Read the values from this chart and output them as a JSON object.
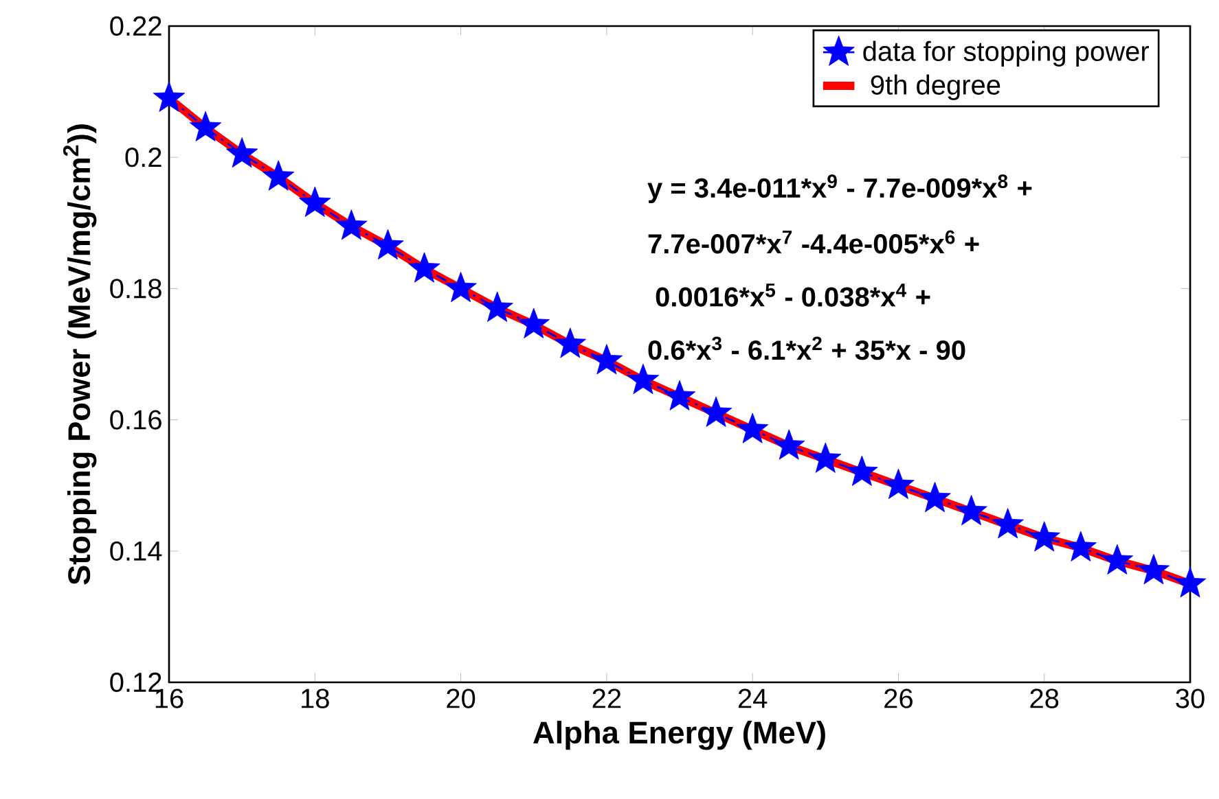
{
  "chart_data": {
    "type": "line",
    "xlabel": "Alpha Energy (MeV)",
    "ylabel": "Stopping Power (MeV/mg/cm$^{2}$))",
    "x": [
      16,
      16.5,
      17,
      17.5,
      18,
      18.5,
      19,
      19.5,
      20,
      20.5,
      21,
      21.5,
      22,
      22.5,
      23,
      23.5,
      24,
      24.5,
      25,
      25.5,
      26,
      26.5,
      27,
      27.5,
      28,
      28.5,
      29,
      29.5,
      30
    ],
    "series": [
      {
        "name": "data for stopping power",
        "color": "#0000ff",
        "marker": "star",
        "line_style": "dashed",
        "values": [
          0.209,
          0.2045,
          0.2005,
          0.197,
          0.193,
          0.1895,
          0.1865,
          0.183,
          0.18,
          0.177,
          0.1745,
          0.1715,
          0.169,
          0.166,
          0.1635,
          0.161,
          0.1585,
          0.156,
          0.154,
          0.152,
          0.15,
          0.148,
          0.146,
          0.144,
          0.142,
          0.1405,
          0.1385,
          0.137,
          0.135
        ]
      },
      {
        "name": "    9th degree",
        "color": "#ff0000",
        "type": "line",
        "values": [
          0.209,
          0.2045,
          0.2005,
          0.197,
          0.193,
          0.1895,
          0.1865,
          0.183,
          0.18,
          0.177,
          0.1745,
          0.1715,
          0.169,
          0.166,
          0.1635,
          0.161,
          0.1585,
          0.156,
          0.154,
          0.152,
          0.15,
          0.148,
          0.146,
          0.144,
          0.142,
          0.1405,
          0.1385,
          0.137,
          0.135
        ]
      }
    ],
    "xlim": [
      16,
      30
    ],
    "xticks": [
      16,
      18,
      20,
      22,
      24,
      26,
      28,
      30
    ],
    "ylim": [
      0.12,
      0.22
    ],
    "yticks": [
      0.12,
      0.14,
      0.16,
      0.18,
      0.2,
      0.22
    ],
    "grid": false,
    "legend": "top right",
    "annotations": [
      "y = 3.4e-011*x$^{9}$ - 7.7e-009*x$^{8}$ +",
      "7.7e-007*x$^{7}$ -4.4e-005*x$^{6}$ +",
      " 0.0016*x$^{5}$ - 0.038*x$^{4}$ +",
      "0.6*x$^{3}$ - 6.1*x$^{2}$ + 35*x  - 90"
    ]
  }
}
